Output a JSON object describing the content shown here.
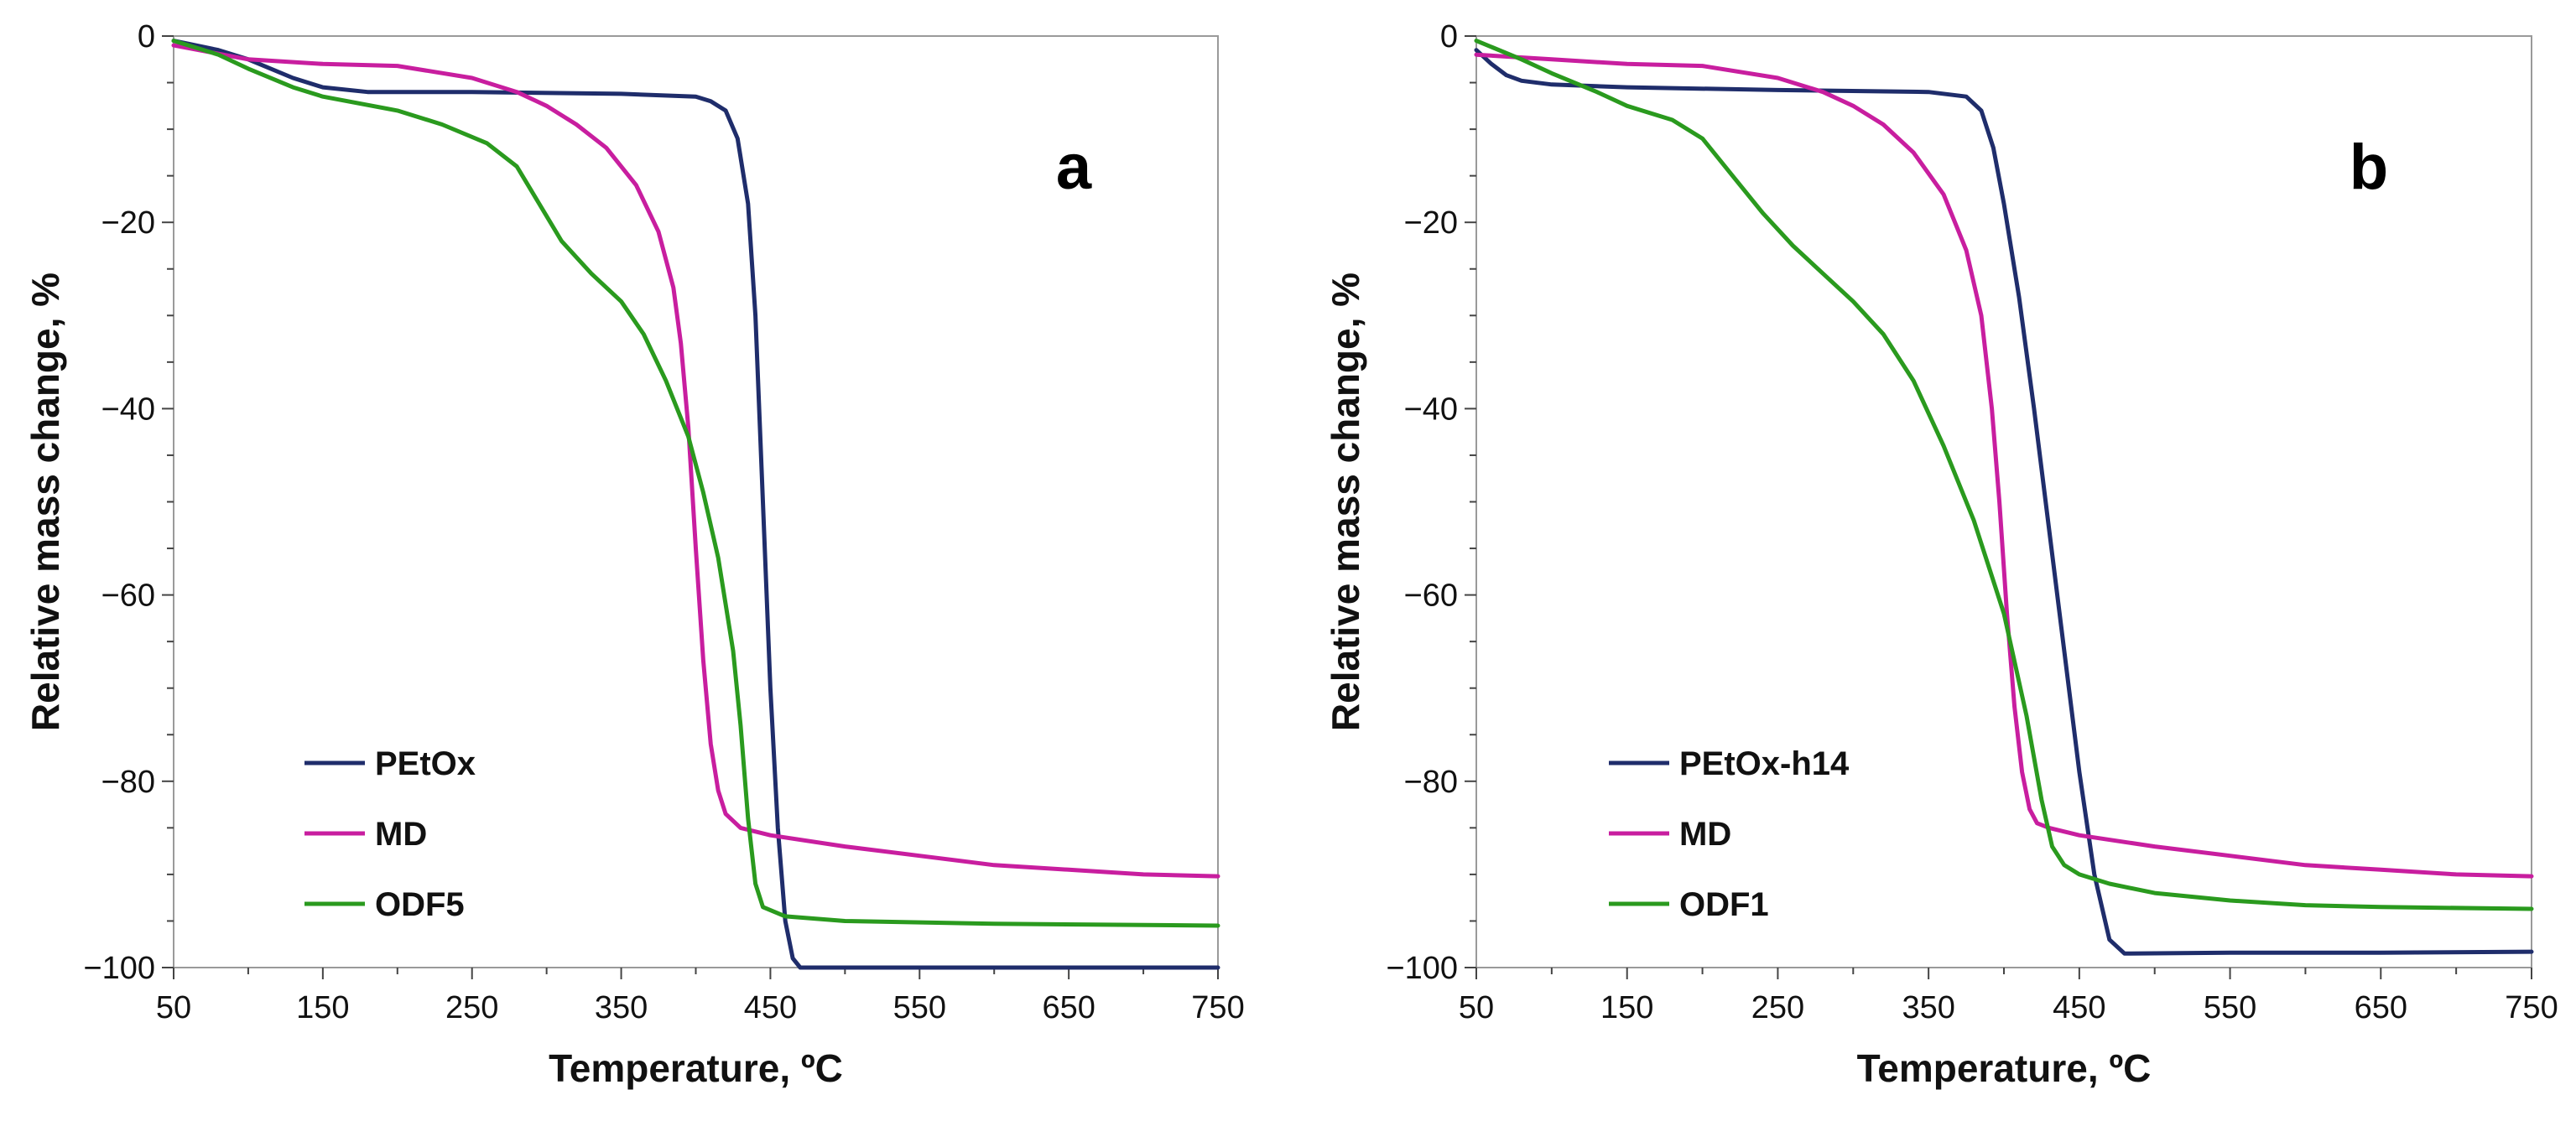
{
  "chart_data": [
    {
      "type": "line",
      "panel_label": "a",
      "xlabel": "Temperature, ºC",
      "ylabel": "Relative mass change, %",
      "xlim": [
        50,
        750
      ],
      "ylim": [
        -100,
        0
      ],
      "xticks": [
        50,
        150,
        250,
        350,
        450,
        550,
        650,
        750
      ],
      "yticks": [
        0,
        -20,
        -40,
        -60,
        -80,
        -100
      ],
      "ytick_labels": [
        "0",
        "−20",
        "−40",
        "−60",
        "−80",
        "−100"
      ],
      "legend_position": "bottom-left",
      "series": [
        {
          "name": "PEtOx",
          "color": "#1f2d6b",
          "points": [
            [
              50,
              -0.5
            ],
            [
              80,
              -1.5
            ],
            [
              100,
              -2.5
            ],
            [
              130,
              -4.5
            ],
            [
              150,
              -5.5
            ],
            [
              180,
              -6
            ],
            [
              250,
              -6
            ],
            [
              350,
              -6.2
            ],
            [
              400,
              -6.5
            ],
            [
              410,
              -7
            ],
            [
              420,
              -8
            ],
            [
              428,
              -11
            ],
            [
              435,
              -18
            ],
            [
              440,
              -30
            ],
            [
              445,
              -50
            ],
            [
              450,
              -70
            ],
            [
              455,
              -85
            ],
            [
              460,
              -95
            ],
            [
              465,
              -99
            ],
            [
              470,
              -100
            ],
            [
              550,
              -100
            ],
            [
              650,
              -100
            ],
            [
              750,
              -100
            ]
          ]
        },
        {
          "name": "MD",
          "color": "#c81e9f",
          "points": [
            [
              50,
              -1
            ],
            [
              100,
              -2.5
            ],
            [
              150,
              -3
            ],
            [
              200,
              -3.2
            ],
            [
              250,
              -4.5
            ],
            [
              280,
              -6
            ],
            [
              300,
              -7.5
            ],
            [
              320,
              -9.5
            ],
            [
              340,
              -12
            ],
            [
              360,
              -16
            ],
            [
              375,
              -21
            ],
            [
              385,
              -27
            ],
            [
              390,
              -33
            ],
            [
              395,
              -42
            ],
            [
              400,
              -55
            ],
            [
              405,
              -67
            ],
            [
              410,
              -76
            ],
            [
              415,
              -81
            ],
            [
              420,
              -83.5
            ],
            [
              430,
              -85
            ],
            [
              450,
              -85.8
            ],
            [
              500,
              -87
            ],
            [
              550,
              -88
            ],
            [
              600,
              -89
            ],
            [
              650,
              -89.5
            ],
            [
              700,
              -90
            ],
            [
              750,
              -90.2
            ]
          ]
        },
        {
          "name": "ODF5",
          "color": "#2a9a1e",
          "points": [
            [
              50,
              -0.5
            ],
            [
              80,
              -2
            ],
            [
              100,
              -3.5
            ],
            [
              130,
              -5.5
            ],
            [
              150,
              -6.5
            ],
            [
              200,
              -8
            ],
            [
              230,
              -9.5
            ],
            [
              260,
              -11.5
            ],
            [
              280,
              -14
            ],
            [
              295,
              -18
            ],
            [
              310,
              -22
            ],
            [
              330,
              -25.5
            ],
            [
              350,
              -28.5
            ],
            [
              365,
              -32
            ],
            [
              380,
              -37
            ],
            [
              395,
              -43
            ],
            [
              405,
              -49
            ],
            [
              415,
              -56
            ],
            [
              425,
              -66
            ],
            [
              430,
              -74
            ],
            [
              435,
              -84
            ],
            [
              440,
              -91
            ],
            [
              445,
              -93.5
            ],
            [
              460,
              -94.5
            ],
            [
              500,
              -95
            ],
            [
              600,
              -95.3
            ],
            [
              750,
              -95.5
            ]
          ]
        }
      ]
    },
    {
      "type": "line",
      "panel_label": "b",
      "xlabel": "Temperature, ºC",
      "ylabel": "Relative mass change, %",
      "xlim": [
        50,
        750
      ],
      "ylim": [
        -100,
        0
      ],
      "xticks": [
        50,
        150,
        250,
        350,
        450,
        550,
        650,
        750
      ],
      "yticks": [
        0,
        -20,
        -40,
        -60,
        -80,
        -100
      ],
      "ytick_labels": [
        "0",
        "−20",
        "−40",
        "−60",
        "−80",
        "−100"
      ],
      "legend_position": "bottom-left",
      "series": [
        {
          "name": "PEtOx-h14",
          "color": "#1f2d6b",
          "points": [
            [
              50,
              -1.5
            ],
            [
              60,
              -3
            ],
            [
              70,
              -4.2
            ],
            [
              80,
              -4.8
            ],
            [
              100,
              -5.2
            ],
            [
              150,
              -5.5
            ],
            [
              250,
              -5.8
            ],
            [
              350,
              -6
            ],
            [
              375,
              -6.5
            ],
            [
              385,
              -8
            ],
            [
              393,
              -12
            ],
            [
              400,
              -18
            ],
            [
              410,
              -28
            ],
            [
              420,
              -40
            ],
            [
              430,
              -53
            ],
            [
              440,
              -66
            ],
            [
              450,
              -79
            ],
            [
              460,
              -90
            ],
            [
              470,
              -97
            ],
            [
              480,
              -98.5
            ],
            [
              550,
              -98.4
            ],
            [
              650,
              -98.4
            ],
            [
              750,
              -98.3
            ]
          ]
        },
        {
          "name": "MD",
          "color": "#c81e9f",
          "points": [
            [
              50,
              -2
            ],
            [
              100,
              -2.5
            ],
            [
              150,
              -3
            ],
            [
              200,
              -3.2
            ],
            [
              250,
              -4.5
            ],
            [
              280,
              -6
            ],
            [
              300,
              -7.5
            ],
            [
              320,
              -9.5
            ],
            [
              340,
              -12.5
            ],
            [
              360,
              -17
            ],
            [
              375,
              -23
            ],
            [
              385,
              -30
            ],
            [
              392,
              -40
            ],
            [
              397,
              -50
            ],
            [
              402,
              -62
            ],
            [
              407,
              -72
            ],
            [
              412,
              -79
            ],
            [
              417,
              -83
            ],
            [
              422,
              -84.5
            ],
            [
              430,
              -85
            ],
            [
              450,
              -85.8
            ],
            [
              500,
              -87
            ],
            [
              550,
              -88
            ],
            [
              600,
              -89
            ],
            [
              650,
              -89.5
            ],
            [
              700,
              -90
            ],
            [
              750,
              -90.2
            ]
          ]
        },
        {
          "name": "ODF1",
          "color": "#2a9a1e",
          "points": [
            [
              50,
              -0.5
            ],
            [
              80,
              -2.5
            ],
            [
              100,
              -4
            ],
            [
              130,
              -6
            ],
            [
              150,
              -7.5
            ],
            [
              180,
              -9
            ],
            [
              200,
              -11
            ],
            [
              220,
              -15
            ],
            [
              240,
              -19
            ],
            [
              260,
              -22.5
            ],
            [
              280,
              -25.5
            ],
            [
              300,
              -28.5
            ],
            [
              320,
              -32
            ],
            [
              340,
              -37
            ],
            [
              360,
              -44
            ],
            [
              380,
              -52
            ],
            [
              400,
              -62
            ],
            [
              415,
              -73
            ],
            [
              425,
              -82
            ],
            [
              432,
              -87
            ],
            [
              440,
              -89
            ],
            [
              450,
              -90
            ],
            [
              470,
              -91
            ],
            [
              500,
              -92
            ],
            [
              550,
              -92.8
            ],
            [
              600,
              -93.3
            ],
            [
              650,
              -93.5
            ],
            [
              750,
              -93.7
            ]
          ]
        }
      ]
    }
  ]
}
